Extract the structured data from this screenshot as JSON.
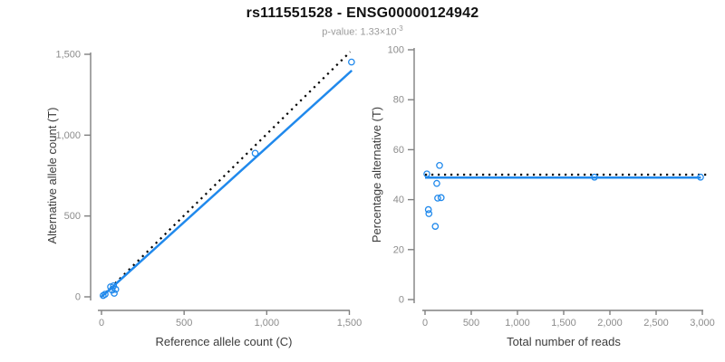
{
  "header": {
    "title": "rs111551528 - ENSG00000124942",
    "subtitle_base": "p-value: 1.33×10",
    "subtitle_exponent": "-3"
  },
  "colors": {
    "accent_blue": "#2089ec",
    "identity_line": "#000000",
    "axis_line": "#808080",
    "tick_label": "#8c8c8c",
    "axis_title": "#3c3c3c"
  },
  "chart_data": [
    {
      "id": "allele-count-chart",
      "type": "scatter",
      "xlabel": "Reference allele count (C)",
      "ylabel": "Alternative allele count (T)",
      "xlim": [
        0,
        1500
      ],
      "ylim": [
        0,
        1500
      ],
      "xticks": [
        {
          "value": 0,
          "label": "0"
        },
        {
          "value": 500,
          "label": "500"
        },
        {
          "value": 1000,
          "label": "1,000"
        },
        {
          "value": 1500,
          "label": "1,500"
        }
      ],
      "yticks": [
        {
          "value": 0,
          "label": "0"
        },
        {
          "value": 500,
          "label": "500"
        },
        {
          "value": 1000,
          "label": "1,000"
        },
        {
          "value": 1500,
          "label": "1,500"
        }
      ],
      "points": [
        [
          10,
          8
        ],
        [
          22,
          16
        ],
        [
          55,
          62
        ],
        [
          73,
          68
        ],
        [
          64,
          42
        ],
        [
          86,
          46
        ],
        [
          77,
          22
        ],
        [
          930,
          888
        ],
        [
          1513,
          1452
        ]
      ],
      "lines": [
        {
          "name": "identity-line",
          "style": "dotted",
          "color_key": "identity_line",
          "x1": 0,
          "y1": 0,
          "x2": 1505,
          "y2": 1515
        },
        {
          "name": "fit-line",
          "style": "solid",
          "color_key": "accent_blue",
          "x1": 0,
          "y1": 0,
          "x2": 1515,
          "y2": 1400
        }
      ]
    },
    {
      "id": "percentage-chart",
      "type": "scatter",
      "xlabel": "Total number of reads",
      "ylabel": "Percentage alternative (T)",
      "xlim": [
        0,
        3000
      ],
      "ylim": [
        0,
        100
      ],
      "xticks": [
        {
          "value": 0,
          "label": "0"
        },
        {
          "value": 500,
          "label": "500"
        },
        {
          "value": 1000,
          "label": "1,000"
        },
        {
          "value": 1500,
          "label": "1,500"
        },
        {
          "value": 2000,
          "label": "2,000"
        },
        {
          "value": 2500,
          "label": "2,500"
        },
        {
          "value": 3000,
          "label": "3,000"
        }
      ],
      "yticks": [
        {
          "value": 0,
          "label": "0"
        },
        {
          "value": 20,
          "label": "20"
        },
        {
          "value": 40,
          "label": "40"
        },
        {
          "value": 60,
          "label": "60"
        },
        {
          "value": 80,
          "label": "80"
        },
        {
          "value": 100,
          "label": "100"
        }
      ],
      "points": [
        [
          157,
          53.7
        ],
        [
          20,
          50.3
        ],
        [
          127,
          46.5
        ],
        [
          137,
          40.6
        ],
        [
          174,
          40.8
        ],
        [
          36,
          36.0
        ],
        [
          42,
          34.4
        ],
        [
          111,
          29.3
        ],
        [
          1833,
          49.0
        ],
        [
          2980,
          49.0
        ]
      ],
      "lines": [
        {
          "name": "expected-line",
          "style": "dotted",
          "color_key": "identity_line",
          "x1": 0,
          "y1": 50,
          "x2": 3050,
          "y2": 50
        },
        {
          "name": "fit-line",
          "style": "solid",
          "color_key": "accent_blue",
          "x1": 0,
          "y1": 48.8,
          "x2": 2985,
          "y2": 48.8
        }
      ]
    }
  ]
}
